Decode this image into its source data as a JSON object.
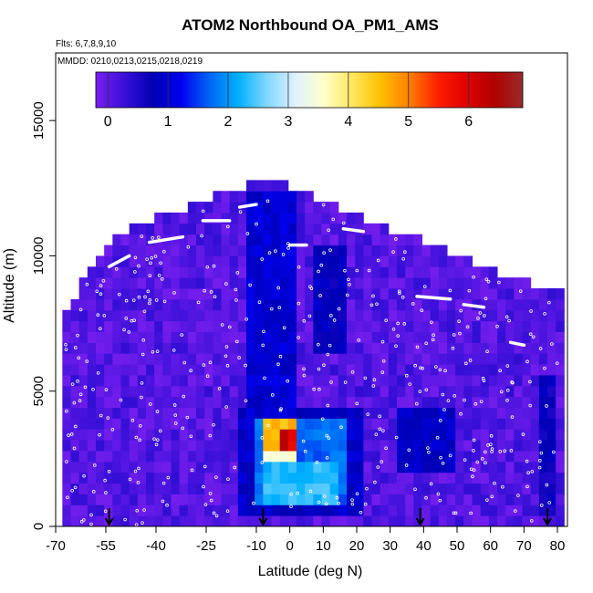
{
  "chart_data": {
    "type": "heatmap",
    "title": "ATOM2 Northbound OA_PM1_AMS",
    "flights_label": "Flts: 6,7,8,9,10",
    "dates_label": "MMDD: 0210,0213,0215,0218,0219",
    "xlabel": "Latitude (deg N)",
    "ylabel": "Altitude (m)",
    "xlim": [
      -70,
      83
    ],
    "ylim": [
      0,
      17500
    ],
    "x_ticks": [
      -70,
      -55,
      -40,
      -25,
      -10,
      0,
      10,
      20,
      30,
      40,
      50,
      60,
      70,
      80
    ],
    "y_ticks": [
      0,
      5000,
      10000,
      15000
    ],
    "colorbar": {
      "range": [
        -0.2,
        6.9
      ],
      "ticks": [
        0,
        1,
        2,
        3,
        4,
        5,
        6
      ],
      "stops": [
        "#7a1ff0",
        "#3a10d8",
        "#0000b4",
        "#0000ee",
        "#0066f5",
        "#00b0ff",
        "#7fd6ff",
        "#dff2ff",
        "#ffffcc",
        "#ffe860",
        "#ffc000",
        "#ff8000",
        "#ff2000",
        "#e00000",
        "#b00000",
        "#9a2a2a"
      ]
    },
    "background_value": 0.1,
    "coverage": [
      [
        -68,
        0,
        7400
      ],
      [
        -65,
        0,
        7900
      ],
      [
        -62,
        0,
        8800
      ],
      [
        -58,
        0,
        9600
      ],
      [
        -55,
        0,
        10200
      ],
      [
        -50,
        0,
        10600
      ],
      [
        -45,
        0,
        11000
      ],
      [
        -40,
        0,
        11300
      ],
      [
        -35,
        0,
        11600
      ],
      [
        -30,
        0,
        11600
      ],
      [
        -25,
        0,
        11900
      ],
      [
        -20,
        0,
        12100
      ],
      [
        -15,
        0,
        12300
      ],
      [
        -10,
        0,
        12500
      ],
      [
        -5,
        0,
        12500
      ],
      [
        0,
        0,
        12400
      ],
      [
        5,
        0,
        12100
      ],
      [
        10,
        0,
        11900
      ],
      [
        15,
        0,
        11600
      ],
      [
        20,
        0,
        11300
      ],
      [
        25,
        0,
        11000
      ],
      [
        30,
        0,
        10800
      ],
      [
        35,
        0,
        10600
      ],
      [
        40,
        0,
        10400
      ],
      [
        45,
        0,
        10100
      ],
      [
        50,
        0,
        9800
      ],
      [
        55,
        0,
        9500
      ],
      [
        60,
        0,
        9300
      ],
      [
        65,
        0,
        9100
      ],
      [
        70,
        0,
        8900
      ],
      [
        75,
        0,
        8700
      ],
      [
        80,
        0,
        8500
      ]
    ],
    "features": [
      {
        "x": [
          -12,
          2
        ],
        "y": [
          3500,
          12500
        ],
        "value": 1.0
      },
      {
        "x": [
          6,
          16
        ],
        "y": [
          6500,
          10500
        ],
        "value": 0.8
      },
      {
        "x": [
          32,
          50
        ],
        "y": [
          2000,
          4500
        ],
        "value": 0.9
      },
      {
        "x": [
          74,
          80
        ],
        "y": [
          500,
          5500
        ],
        "value": 0.7
      },
      {
        "x": [
          -15,
          22
        ],
        "y": [
          500,
          4500
        ],
        "value": 0.9
      },
      {
        "x": [
          -10,
          18
        ],
        "y": [
          800,
          4000
        ],
        "value": 1.7
      },
      {
        "x": [
          -9,
          14
        ],
        "y": [
          900,
          2500
        ],
        "value": 2.3
      },
      {
        "x": [
          -9,
          2
        ],
        "y": [
          2500,
          4000
        ],
        "value": 3.6
      },
      {
        "x": [
          -7,
          2
        ],
        "y": [
          2700,
          3800
        ],
        "value": 4.6
      },
      {
        "x": [
          -4,
          1
        ],
        "y": [
          2800,
          3600
        ],
        "value": 5.8
      },
      {
        "x": [
          -3,
          0
        ],
        "y": [
          2900,
          3400
        ],
        "value": 6.2
      }
    ],
    "flight_tracks": [
      {
        "x": [
          -54,
          -48
        ],
        "y": [
          9600,
          10000
        ]
      },
      {
        "x": [
          -42,
          -32
        ],
        "y": [
          10500,
          10700
        ]
      },
      {
        "x": [
          -26,
          -18
        ],
        "y": [
          11300,
          11300
        ]
      },
      {
        "x": [
          -15,
          -10
        ],
        "y": [
          11800,
          11900
        ]
      },
      {
        "x": [
          0,
          5
        ],
        "y": [
          10400,
          10400
        ]
      },
      {
        "x": [
          16,
          22
        ],
        "y": [
          11000,
          10900
        ]
      },
      {
        "x": [
          25,
          34
        ],
        "y": [
          11800,
          11800
        ]
      },
      {
        "x": [
          38,
          48
        ],
        "y": [
          8500,
          8400
        ]
      },
      {
        "x": [
          52,
          58
        ],
        "y": [
          8200,
          8100
        ]
      },
      {
        "x": [
          64,
          70
        ],
        "y": [
          9500,
          9400
        ]
      },
      {
        "x": [
          66,
          70
        ],
        "y": [
          6800,
          6700
        ]
      },
      {
        "x": [
          -58,
          -56
        ],
        "y": [
          11900,
          12000
        ]
      }
    ],
    "profile_markers_lat": [
      -54,
      -8,
      39,
      77
    ]
  }
}
